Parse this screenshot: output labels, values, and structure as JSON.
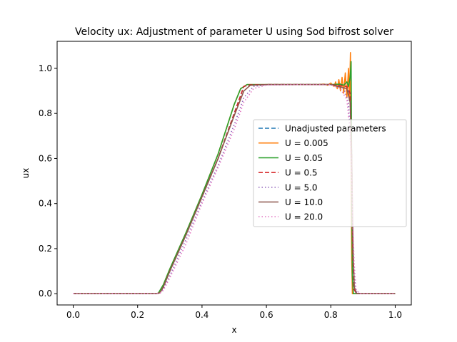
{
  "chart_data": {
    "type": "line",
    "title": "Velocity ux: Adjustment of parameter U using Sod bifrost solver",
    "xlabel": "x",
    "ylabel": "ux",
    "xlim": [
      -0.05,
      1.05
    ],
    "ylim": [
      -0.05,
      1.12
    ],
    "xticks": [
      0.0,
      0.2,
      0.4,
      0.6,
      0.8,
      1.0
    ],
    "yticks": [
      0.0,
      0.2,
      0.4,
      0.6,
      0.8,
      1.0
    ],
    "xtick_labels": [
      "0.0",
      "0.2",
      "0.4",
      "0.6",
      "0.8",
      "1.0"
    ],
    "ytick_labels": [
      "0.0",
      "0.2",
      "0.4",
      "0.6",
      "0.8",
      "1.0"
    ],
    "grid": false,
    "legend_position": "center-right",
    "series": [
      {
        "name": "Unadjusted parameters",
        "color": "#1f77b4",
        "linestyle": "dashed",
        "points": [
          [
            0.0,
            0.0
          ],
          [
            0.26,
            0.0
          ],
          [
            0.27,
            0.005
          ],
          [
            0.28,
            0.03
          ],
          [
            0.3,
            0.1
          ],
          [
            0.35,
            0.26
          ],
          [
            0.4,
            0.43
          ],
          [
            0.45,
            0.6
          ],
          [
            0.5,
            0.8
          ],
          [
            0.53,
            0.92
          ],
          [
            0.55,
            0.927
          ],
          [
            0.6,
            0.928
          ],
          [
            0.7,
            0.928
          ],
          [
            0.8,
            0.928
          ],
          [
            0.85,
            0.92
          ],
          [
            0.86,
            0.88
          ],
          [
            0.865,
            0.6
          ],
          [
            0.868,
            0.2
          ],
          [
            0.872,
            0.02
          ],
          [
            0.88,
            0.0
          ],
          [
            1.0,
            0.0
          ]
        ]
      },
      {
        "name": "U = 0.005",
        "color": "#ff7f0e",
        "linestyle": "solid",
        "points": [
          [
            0.0,
            0.0
          ],
          [
            0.26,
            0.0
          ],
          [
            0.265,
            0.003
          ],
          [
            0.28,
            0.04
          ],
          [
            0.3,
            0.11
          ],
          [
            0.35,
            0.27
          ],
          [
            0.4,
            0.44
          ],
          [
            0.45,
            0.62
          ],
          [
            0.5,
            0.84
          ],
          [
            0.52,
            0.91
          ],
          [
            0.54,
            0.928
          ],
          [
            0.6,
            0.928
          ],
          [
            0.7,
            0.928
          ],
          [
            0.76,
            0.928
          ],
          [
            0.78,
            0.93
          ],
          [
            0.79,
            0.925
          ],
          [
            0.8,
            0.935
          ],
          [
            0.81,
            0.92
          ],
          [
            0.815,
            0.94
          ],
          [
            0.82,
            0.91
          ],
          [
            0.825,
            0.95
          ],
          [
            0.83,
            0.9
          ],
          [
            0.835,
            0.96
          ],
          [
            0.84,
            0.89
          ],
          [
            0.845,
            0.98
          ],
          [
            0.85,
            0.87
          ],
          [
            0.855,
            1.0
          ],
          [
            0.858,
            0.86
          ],
          [
            0.861,
            1.07
          ],
          [
            0.863,
            0.6
          ],
          [
            0.865,
            0.15
          ],
          [
            0.867,
            0.0
          ],
          [
            1.0,
            0.0
          ]
        ]
      },
      {
        "name": "U = 0.05",
        "color": "#2ca02c",
        "linestyle": "solid",
        "points": [
          [
            0.0,
            0.0
          ],
          [
            0.26,
            0.0
          ],
          [
            0.265,
            0.004
          ],
          [
            0.28,
            0.04
          ],
          [
            0.3,
            0.11
          ],
          [
            0.35,
            0.27
          ],
          [
            0.4,
            0.44
          ],
          [
            0.45,
            0.62
          ],
          [
            0.5,
            0.84
          ],
          [
            0.52,
            0.91
          ],
          [
            0.54,
            0.928
          ],
          [
            0.6,
            0.928
          ],
          [
            0.7,
            0.928
          ],
          [
            0.8,
            0.928
          ],
          [
            0.83,
            0.93
          ],
          [
            0.84,
            0.925
          ],
          [
            0.85,
            0.94
          ],
          [
            0.855,
            0.92
          ],
          [
            0.86,
            0.96
          ],
          [
            0.863,
            1.03
          ],
          [
            0.865,
            0.5
          ],
          [
            0.867,
            0.08
          ],
          [
            0.87,
            0.0
          ],
          [
            1.0,
            0.0
          ]
        ]
      },
      {
        "name": "U = 0.5",
        "color": "#d62728",
        "linestyle": "dashed",
        "points": [
          [
            0.0,
            0.0
          ],
          [
            0.26,
            0.0
          ],
          [
            0.27,
            0.005
          ],
          [
            0.28,
            0.03
          ],
          [
            0.3,
            0.1
          ],
          [
            0.35,
            0.26
          ],
          [
            0.4,
            0.43
          ],
          [
            0.45,
            0.6
          ],
          [
            0.5,
            0.8
          ],
          [
            0.53,
            0.92
          ],
          [
            0.55,
            0.927
          ],
          [
            0.6,
            0.928
          ],
          [
            0.7,
            0.928
          ],
          [
            0.8,
            0.928
          ],
          [
            0.85,
            0.92
          ],
          [
            0.86,
            0.89
          ],
          [
            0.865,
            0.6
          ],
          [
            0.868,
            0.2
          ],
          [
            0.872,
            0.02
          ],
          [
            0.88,
            0.0
          ],
          [
            1.0,
            0.0
          ]
        ]
      },
      {
        "name": "U = 5.0",
        "color": "#9467bd",
        "linestyle": "dotted",
        "points": [
          [
            0.0,
            0.0
          ],
          [
            0.26,
            0.0
          ],
          [
            0.27,
            0.004
          ],
          [
            0.28,
            0.02
          ],
          [
            0.3,
            0.08
          ],
          [
            0.35,
            0.24
          ],
          [
            0.4,
            0.41
          ],
          [
            0.45,
            0.57
          ],
          [
            0.5,
            0.75
          ],
          [
            0.53,
            0.87
          ],
          [
            0.56,
            0.92
          ],
          [
            0.6,
            0.927
          ],
          [
            0.7,
            0.928
          ],
          [
            0.8,
            0.928
          ],
          [
            0.84,
            0.91
          ],
          [
            0.855,
            0.85
          ],
          [
            0.862,
            0.65
          ],
          [
            0.867,
            0.35
          ],
          [
            0.872,
            0.1
          ],
          [
            0.878,
            0.01
          ],
          [
            0.89,
            0.0
          ],
          [
            1.0,
            0.0
          ]
        ]
      },
      {
        "name": "U = 10.0",
        "color": "#8c564b",
        "linestyle": "solid",
        "points": [
          [
            0.0,
            0.0
          ],
          [
            0.26,
            0.0
          ],
          [
            0.27,
            0.005
          ],
          [
            0.28,
            0.03
          ],
          [
            0.3,
            0.1
          ],
          [
            0.35,
            0.26
          ],
          [
            0.4,
            0.43
          ],
          [
            0.45,
            0.6
          ],
          [
            0.5,
            0.79
          ],
          [
            0.53,
            0.9
          ],
          [
            0.55,
            0.925
          ],
          [
            0.6,
            0.928
          ],
          [
            0.7,
            0.928
          ],
          [
            0.8,
            0.928
          ],
          [
            0.85,
            0.91
          ],
          [
            0.86,
            0.85
          ],
          [
            0.865,
            0.6
          ],
          [
            0.869,
            0.2
          ],
          [
            0.873,
            0.03
          ],
          [
            0.88,
            0.0
          ],
          [
            1.0,
            0.0
          ]
        ]
      },
      {
        "name": "U = 20.0",
        "color": "#e377c2",
        "linestyle": "dotted",
        "points": [
          [
            0.0,
            0.0
          ],
          [
            0.26,
            0.0
          ],
          [
            0.27,
            0.003
          ],
          [
            0.28,
            0.015
          ],
          [
            0.3,
            0.07
          ],
          [
            0.35,
            0.22
          ],
          [
            0.4,
            0.4
          ],
          [
            0.45,
            0.56
          ],
          [
            0.5,
            0.73
          ],
          [
            0.53,
            0.85
          ],
          [
            0.56,
            0.91
          ],
          [
            0.6,
            0.926
          ],
          [
            0.7,
            0.928
          ],
          [
            0.8,
            0.927
          ],
          [
            0.83,
            0.91
          ],
          [
            0.85,
            0.86
          ],
          [
            0.86,
            0.72
          ],
          [
            0.866,
            0.45
          ],
          [
            0.872,
            0.15
          ],
          [
            0.878,
            0.02
          ],
          [
            0.89,
            0.0
          ],
          [
            1.0,
            0.0
          ]
        ]
      }
    ]
  }
}
